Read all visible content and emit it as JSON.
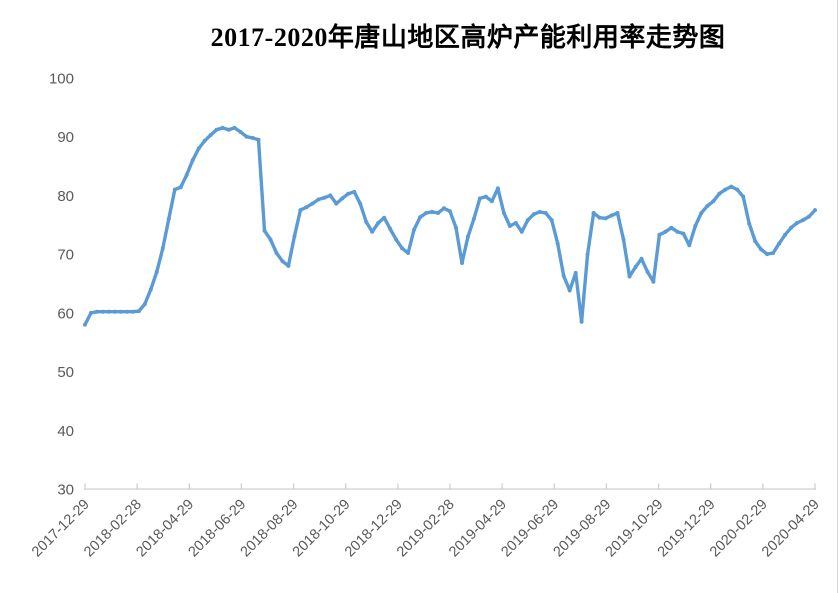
{
  "chart": {
    "title": "2017-2020年唐山地区高炉产能利用率走势图"
  },
  "chart_data": {
    "type": "line",
    "title": "2017-2020年唐山地区高炉产能利用率走势图",
    "xlabel": "",
    "ylabel": "",
    "ylim": [
      30,
      100
    ],
    "y_ticks": [
      100,
      90,
      80,
      70,
      60,
      50,
      40,
      30
    ],
    "x_tick_labels": [
      "2017-12-29",
      "2018-02-28",
      "2018-04-29",
      "2018-06-29",
      "2018-08-29",
      "2018-10-29",
      "2018-12-29",
      "2019-02-28",
      "2019-04-29",
      "2019-06-29",
      "2019-08-29",
      "2019-10-29",
      "2019-12-29",
      "2020-02-29",
      "2020-04-29"
    ],
    "x_start": "2017-12-29",
    "x_end": "2020-04-29",
    "interval": "weekly",
    "grid": false,
    "legend": "none",
    "line_color": "#5B9BD5",
    "axis_color": "#CFCFCF",
    "label_color": "#595959",
    "title_color": "#262626",
    "series": [
      {
        "name": "高炉产能利用率",
        "values": [
          58,
          60,
          60.2,
          60.2,
          60.2,
          60.2,
          60.2,
          60.2,
          60.2,
          60.3,
          61.5,
          64,
          67,
          71,
          76,
          81,
          81.4,
          83.5,
          86,
          88,
          89.3,
          90.3,
          91.2,
          91.5,
          91.2,
          91.5,
          90.8,
          90,
          89.8,
          89.5,
          74,
          72.5,
          70.2,
          68.8,
          68,
          73,
          77.5,
          78,
          78.6,
          79.3,
          79.6,
          80,
          78.6,
          79.5,
          80.3,
          80.6,
          78.6,
          75.5,
          73.8,
          75.3,
          76.2,
          74.3,
          72.5,
          71,
          70.2,
          74.2,
          76.3,
          77,
          77.2,
          77,
          77.8,
          77.3,
          74.5,
          68.5,
          73,
          76,
          79.5,
          79.8,
          79,
          81.2,
          77,
          74.8,
          75.3,
          73.8,
          75.8,
          76.8,
          77.2,
          77,
          75.8,
          71.8,
          66.3,
          63.8,
          66.8,
          58.5,
          70,
          77,
          76.2,
          76.1,
          76.6,
          77,
          72.5,
          66.2,
          67.8,
          69.2,
          67,
          65.3,
          73.3,
          73.8,
          74.5,
          73.8,
          73.5,
          71.5,
          74.8,
          77,
          78.2,
          79,
          80.3,
          81,
          81.5,
          81,
          79.8,
          75.2,
          72.2,
          70.8,
          70,
          70.2,
          71.8,
          73.3,
          74.5,
          75.3,
          75.8,
          76.4,
          77.5
        ]
      }
    ]
  }
}
